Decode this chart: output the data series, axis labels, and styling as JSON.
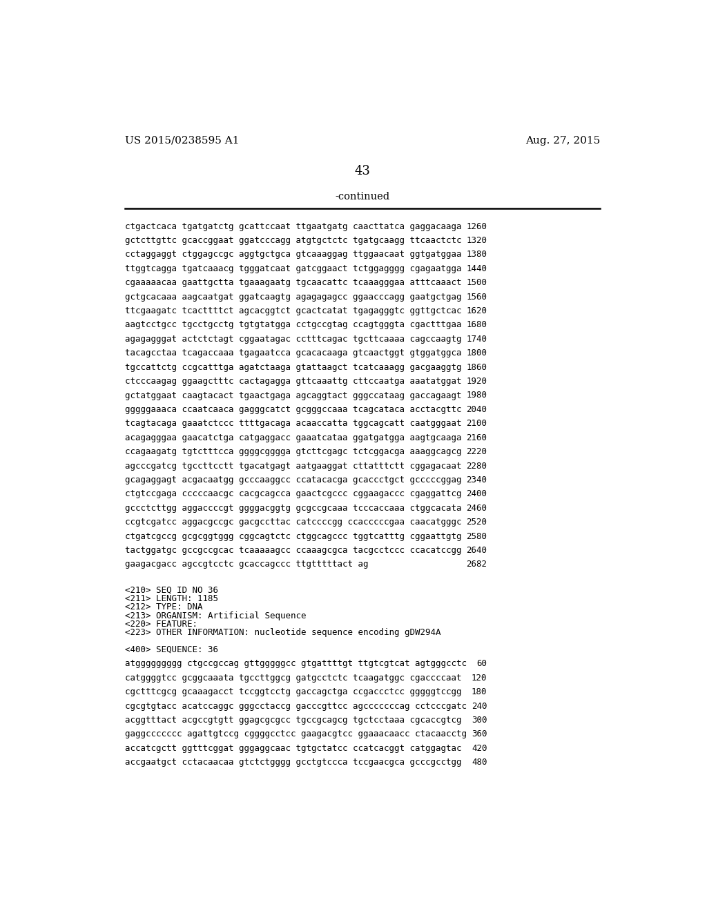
{
  "header_left": "US 2015/0238595 A1",
  "header_right": "Aug. 27, 2015",
  "page_number": "43",
  "continued_label": "-continued",
  "background_color": "#ffffff",
  "text_color": "#000000",
  "sequence_lines": [
    [
      "ctgactcaca tgatgatctg gcattccaat ttgaatgatg caacttatca gaggacaaga",
      "1260"
    ],
    [
      "gctcttgttc gcaccggaat ggatcccagg atgtgctctc tgatgcaagg ttcaactctc",
      "1320"
    ],
    [
      "cctaggaggt ctggagccgc aggtgctgca gtcaaaggag ttggaacaat ggtgatggaa",
      "1380"
    ],
    [
      "ttggtcagga tgatcaaacg tgggatcaat gatcggaact tctggagggg cgagaatgga",
      "1440"
    ],
    [
      "cgaaaaacaa gaattgctta tgaaagaatg tgcaacattc tcaaagggaa atttcaaact",
      "1500"
    ],
    [
      "gctgcacaaa aagcaatgat ggatcaagtg agagagagcc ggaacccagg gaatgctgag",
      "1560"
    ],
    [
      "ttcgaagatc tcacttttct agcacggtct gcactcatat tgagagggtc ggttgctcac",
      "1620"
    ],
    [
      "aagtcctgcc tgcctgcctg tgtgtatgga cctgccgtag ccagtgggta cgactttgaa",
      "1680"
    ],
    [
      "agagagggat actctctagt cggaatagac cctttcagac tgcttcaaaa cagccaagtg",
      "1740"
    ],
    [
      "tacagcctaa tcagaccaaa tgagaatcca gcacacaaga gtcaactggt gtggatggca",
      "1800"
    ],
    [
      "tgccattctg ccgcatttga agatctaaga gtattaagct tcatcaaagg gacgaaggtg",
      "1860"
    ],
    [
      "ctcccaagag ggaagctttc cactagagga gttcaaattg cttccaatga aaatatggat",
      "1920"
    ],
    [
      "gctatggaat caagtacact tgaactgaga agcaggtact gggccataag gaccagaagt",
      "1980"
    ],
    [
      "gggggaaaca ccaatcaaca gagggcatct gcgggccaaa tcagcataca acctacgttc",
      "2040"
    ],
    [
      "tcagtacaga gaaatctccc ttttgacaga acaaccatta tggcagcatt caatgggaat",
      "2100"
    ],
    [
      "acagagggaa gaacatctga catgaggacc gaaatcataa ggatgatgga aagtgcaaga",
      "2160"
    ],
    [
      "ccagaagatg tgtctttcca ggggcgggga gtcttcgagc tctcggacga aaaggcagcg",
      "2220"
    ],
    [
      "agcccgatcg tgccttcctt tgacatgagt aatgaaggat cttatttctt cggagacaat",
      "2280"
    ],
    [
      "gcagaggagt acgacaatgg gcccaaggcc ccatacacga gcaccctgct gcccccggag",
      "2340"
    ],
    [
      "ctgtccgaga cccccaacgc cacgcagcca gaactcgccc cggaagaccc cgaggattcg",
      "2400"
    ],
    [
      "gccctcttgg aggaccccgt ggggacggtg gcgccgcaaa tcccaccaaa ctggcacata",
      "2460"
    ],
    [
      "ccgtcgatcc aggacgccgc gacgccttac catccccgg ccacccccgaa caacatgggc",
      "2520"
    ],
    [
      "ctgatcgccg gcgcggtggg cggcagtctc ctggcagccc tggtcatttg cggaattgtg",
      "2580"
    ],
    [
      "tactggatgc gccgccgcac tcaaaaagcc ccaaagcgca tacgcctccc ccacatccgg",
      "2640"
    ],
    [
      "gaagacgacc agccgtcctc gcaccagccc ttgtttttact ag",
      "2682"
    ]
  ],
  "meta_lines": [
    "<210> SEQ ID NO 36",
    "<211> LENGTH: 1185",
    "<212> TYPE: DNA",
    "<213> ORGANISM: Artificial Sequence",
    "<220> FEATURE:",
    "<223> OTHER INFORMATION: nucleotide sequence encoding gDW294A"
  ],
  "sequence_label": "<400> SEQUENCE: 36",
  "sequence2_lines": [
    [
      "atggggggggg ctgccgccag gttgggggcc gtgattttgt ttgtcgtcat agtgggcctc",
      "60"
    ],
    [
      "catggggtcc gcggcaaata tgccttggcg gatgcctctc tcaagatggc cgaccccaat",
      "120"
    ],
    [
      "cgctttcgcg gcaaagacct tccggtcctg gaccagctga ccgaccctcc gggggtccgg",
      "180"
    ],
    [
      "cgcgtgtacc acatccaggc gggcctaccg gacccgttcc agcccccccag cctcccgatc",
      "240"
    ],
    [
      "acggtttact acgccgtgtt ggagcgcgcc tgccgcagcg tgctcctaaa cgcaccgtcg",
      "300"
    ],
    [
      "gaggccccccc agattgtccg cggggcctcc gaagacgtcc ggaaacaacc ctacaacctg",
      "360"
    ],
    [
      "accatcgctt ggtttcggat gggaggcaac tgtgctatcc ccatcacggt catggagtac",
      "420"
    ],
    [
      "accgaatgct cctacaacaa gtctctgggg gcctgtccca tccgaacgca gcccgcctgg",
      "480"
    ]
  ]
}
